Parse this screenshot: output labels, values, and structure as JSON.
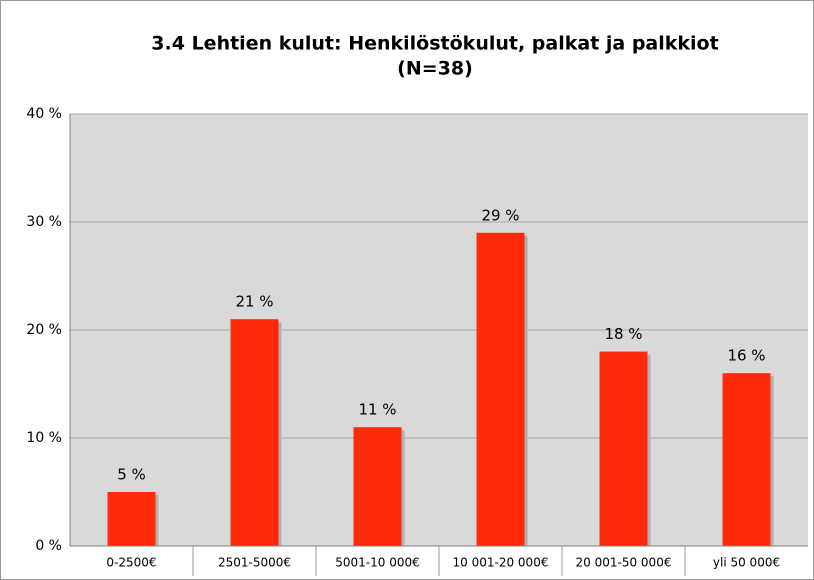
{
  "chart_data": {
    "type": "bar",
    "title": "3.4 Lehtien kulut: Henkilöstökulut, palkat ja palkkiot",
    "subtitle": "(N=38)",
    "categories": [
      "0-2500€",
      "2501-5000€",
      "5001-10 000€",
      "10 001-20 000€",
      "20 001-50 000€",
      "yli 50 000€"
    ],
    "values": [
      5,
      21,
      11,
      29,
      18,
      16
    ],
    "value_labels": [
      "5 %",
      "21 %",
      "11 %",
      "29 %",
      "18 %",
      "16 %"
    ],
    "color": "#ff2a0a",
    "ylim": [
      0,
      40
    ],
    "yticks": [
      {
        "value": 0,
        "label": "0 %"
      },
      {
        "value": 10,
        "label": "10 %"
      },
      {
        "value": 20,
        "label": "20 %"
      },
      {
        "value": 30,
        "label": "30 %"
      },
      {
        "value": 40,
        "label": "40 %"
      }
    ],
    "grid": true
  }
}
